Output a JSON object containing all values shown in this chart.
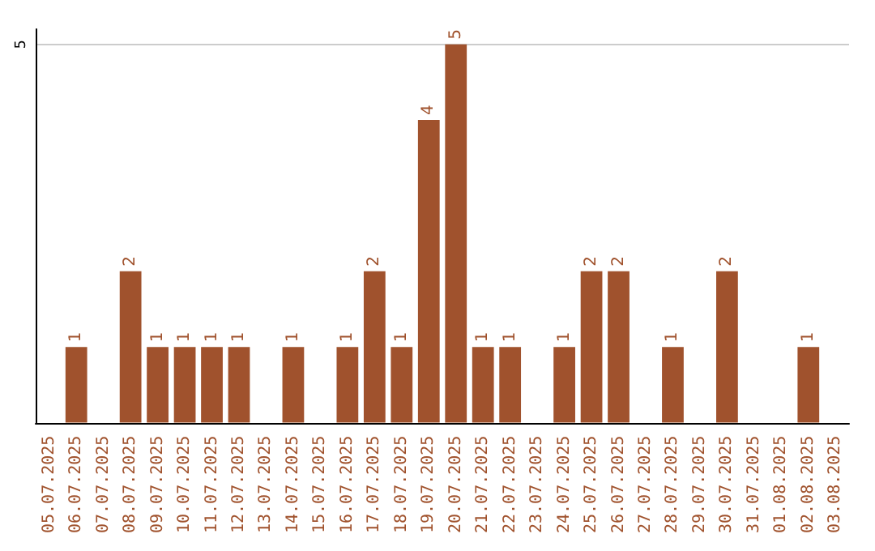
{
  "chart_data": {
    "type": "bar",
    "categories": [
      "05.07.2025",
      "06.07.2025",
      "07.07.2025",
      "08.07.2025",
      "09.07.2025",
      "10.07.2025",
      "11.07.2025",
      "12.07.2025",
      "13.07.2025",
      "14.07.2025",
      "15.07.2025",
      "16.07.2025",
      "17.07.2025",
      "18.07.2025",
      "19.07.2025",
      "20.07.2025",
      "21.07.2025",
      "22.07.2025",
      "23.07.2025",
      "24.07.2025",
      "25.07.2025",
      "26.07.2025",
      "27.07.2025",
      "28.07.2025",
      "29.07.2025",
      "30.07.2025",
      "31.07.2025",
      "01.08.2025",
      "02.08.2025",
      "03.08.2025"
    ],
    "values": [
      0,
      1,
      0,
      2,
      1,
      1,
      1,
      1,
      0,
      1,
      0,
      1,
      2,
      1,
      4,
      5,
      1,
      1,
      0,
      1,
      2,
      2,
      0,
      1,
      0,
      2,
      0,
      0,
      1,
      0
    ],
    "value_labels": [
      null,
      "1",
      null,
      "2",
      "1",
      "1",
      "1",
      "1",
      null,
      "1",
      null,
      "1",
      "2",
      "1",
      "4",
      "5",
      "1",
      "1",
      null,
      "1",
      "2",
      "2",
      null,
      "1",
      null,
      "2",
      null,
      null,
      "1",
      null
    ],
    "color": "#a0522d",
    "ylim": [
      0,
      5.2
    ],
    "yticks": [
      5
    ],
    "grid": "y"
  }
}
